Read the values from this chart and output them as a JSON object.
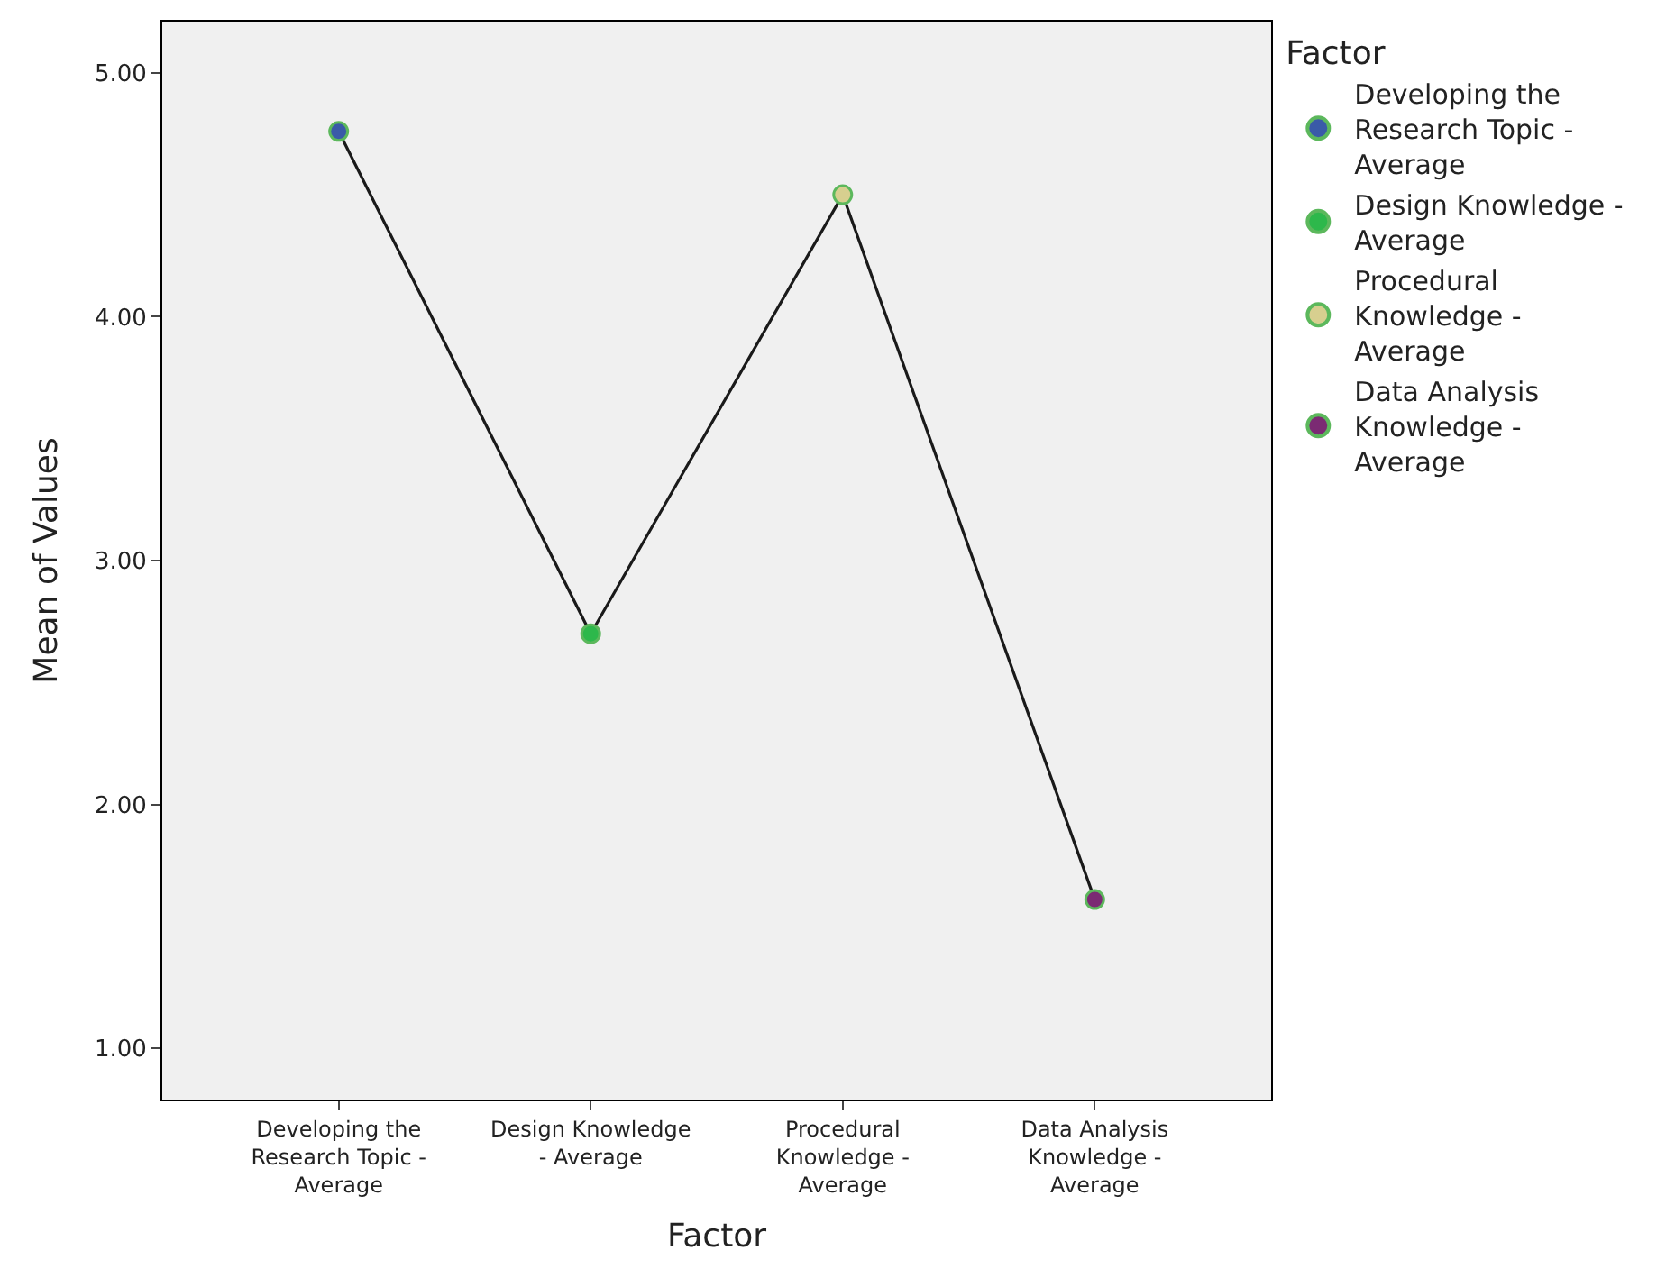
{
  "chart_data": {
    "type": "line",
    "xlabel": "Factor",
    "ylabel": "Mean of Values",
    "legend_title": "Factor",
    "legend": "top right",
    "grid": false,
    "line_style": "solid",
    "categories": [
      "Developing the Research Topic - Average",
      "Design Knowledge - Average",
      "Procedural Knowledge - Average",
      "Data Analysis Knowledge - Average"
    ],
    "ylim": [
      0.79,
      5.21
    ],
    "yticks": [
      {
        "value": 1,
        "label": "1.00"
      },
      {
        "value": 2,
        "label": "2.00"
      },
      {
        "value": 3,
        "label": "3.00"
      },
      {
        "value": 4,
        "label": "4.00"
      },
      {
        "value": 5,
        "label": "5.00"
      }
    ],
    "series": [
      {
        "color": "#1a1a1a",
        "marker": "none",
        "values": [
          4.76,
          2.7,
          4.5,
          1.61
        ]
      },
      {
        "type": "scatter",
        "marker": "circle",
        "name": "Developing the Research Topic - Average",
        "color": "#3a5aa8",
        "values": [
          4.76,
          null,
          null,
          null
        ]
      },
      {
        "type": "scatter",
        "marker": "circle",
        "name": "Design Knowledge - Average",
        "color": "#2db84b",
        "values": [
          null,
          2.7,
          null,
          null
        ]
      },
      {
        "type": "scatter",
        "marker": "circle",
        "name": "Procedural Knowledge - Average",
        "color": "#d7cf8f",
        "values": [
          null,
          null,
          4.5,
          null
        ]
      },
      {
        "type": "scatter",
        "marker": "circle",
        "name": "Data Analysis Knowledge - Average",
        "color": "#7b2a73",
        "values": [
          null,
          null,
          null,
          1.61
        ]
      }
    ]
  }
}
